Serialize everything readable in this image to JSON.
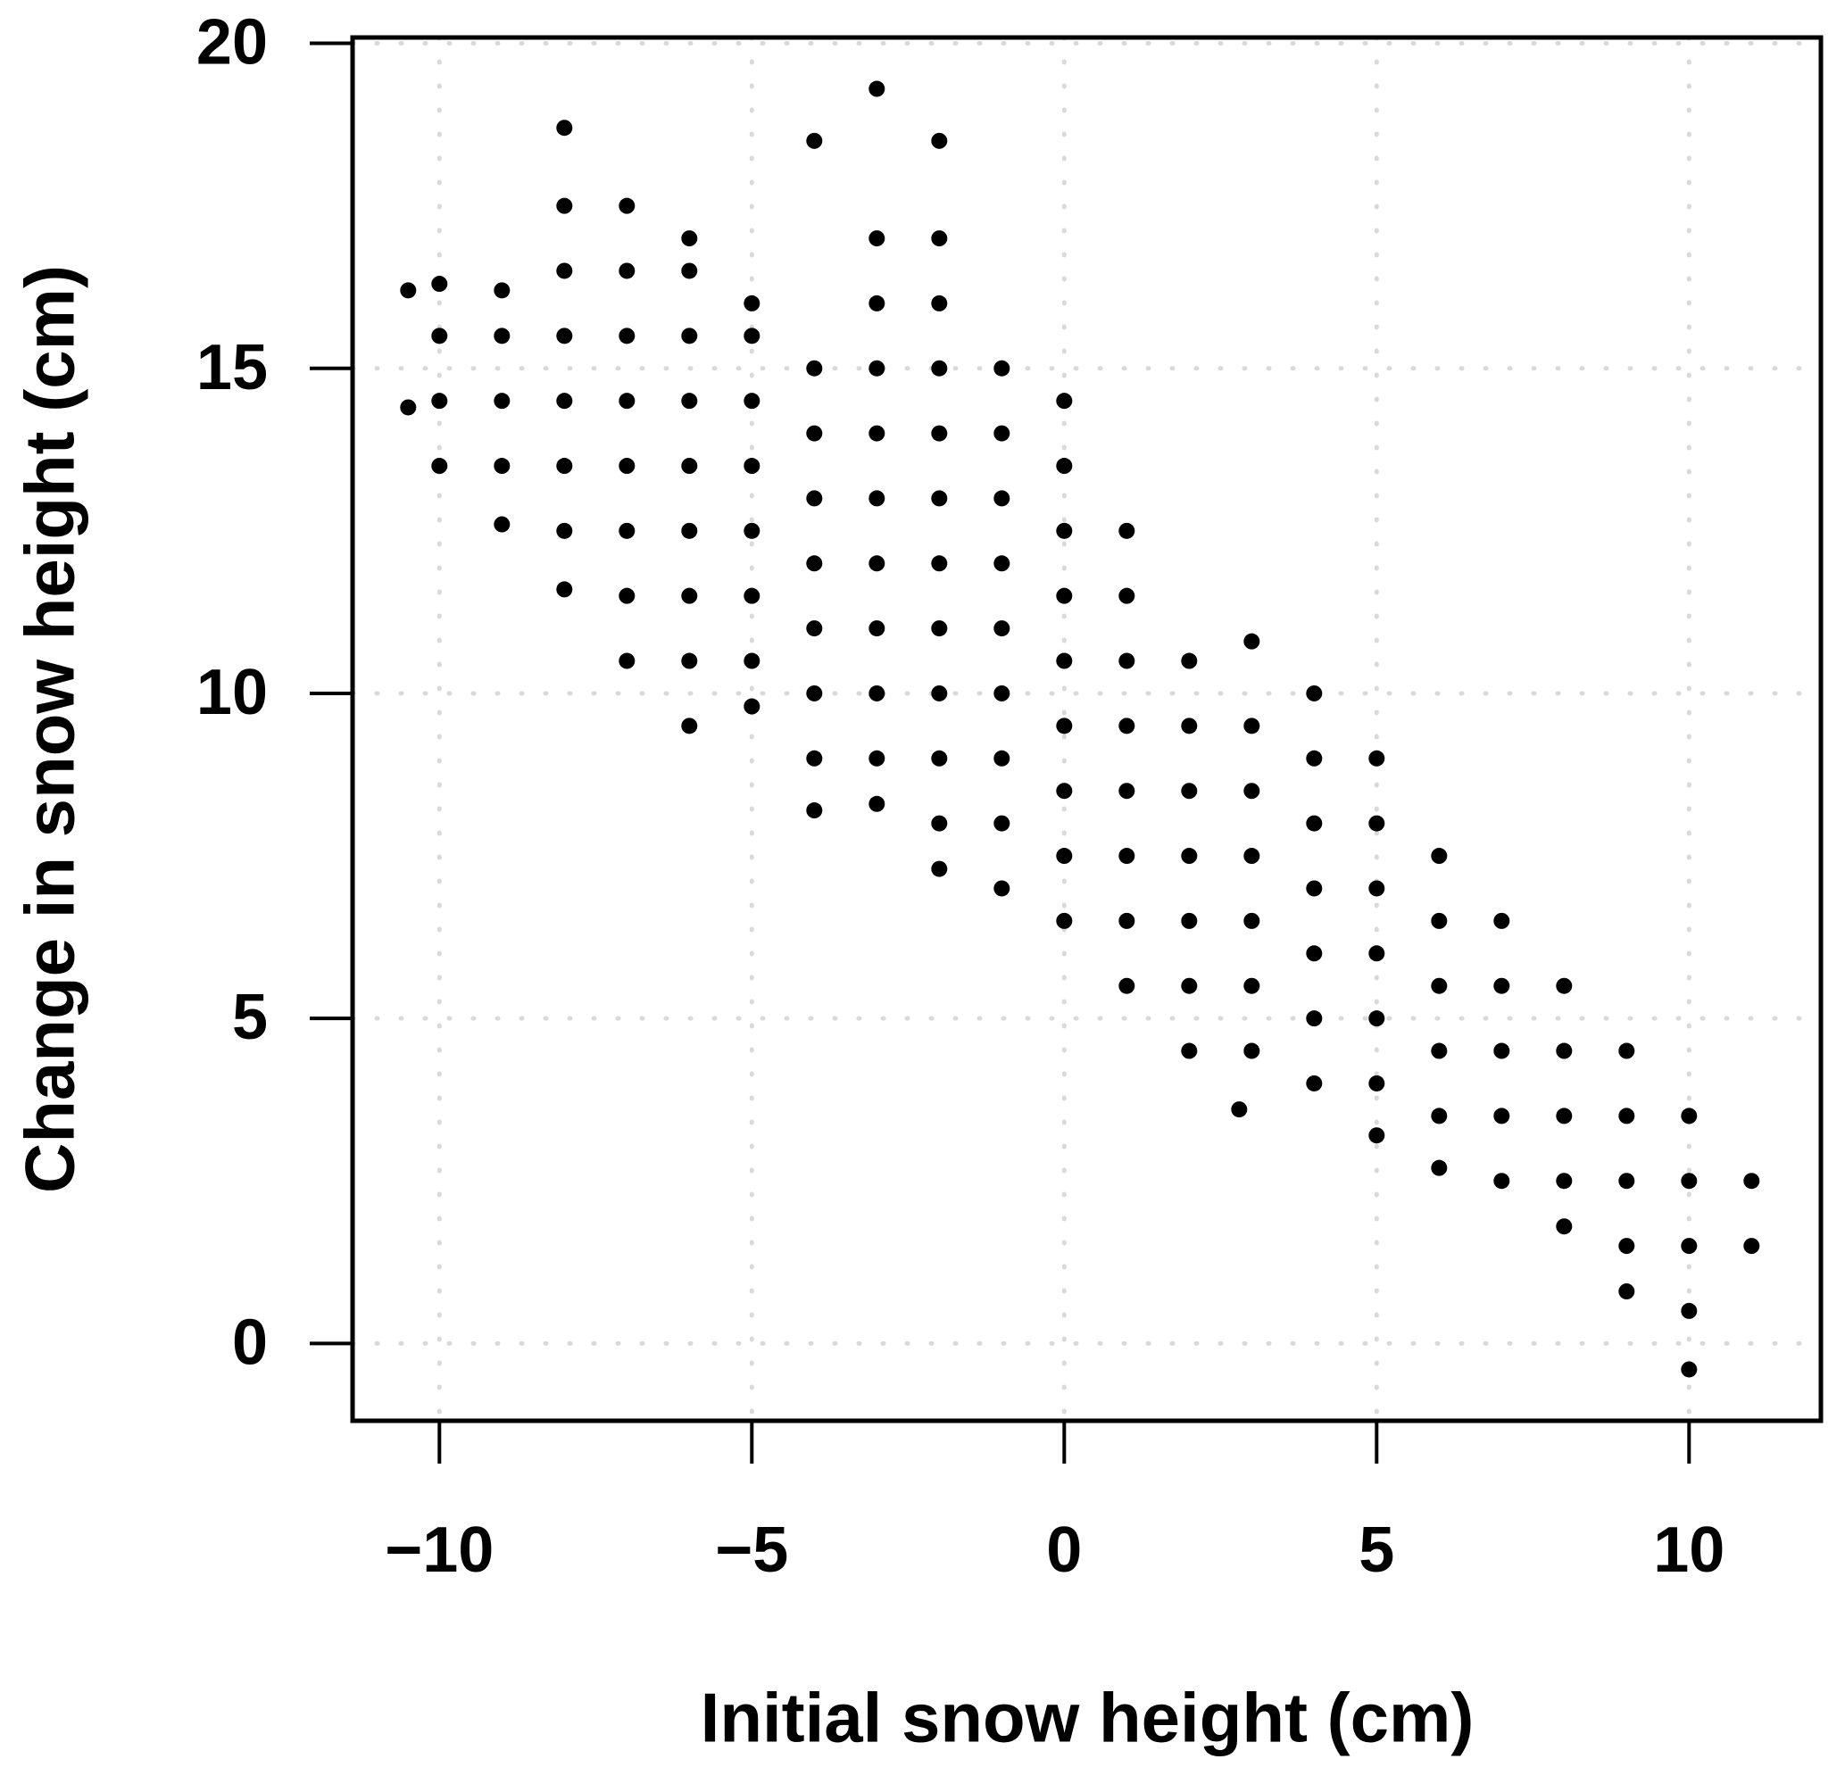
{
  "chart_data": {
    "type": "scatter",
    "x_label": "Initial snow height (cm)",
    "y_label": "Change in snow height (cm)",
    "xlim": [
      -11.39,
      12.11
    ],
    "ylim": [
      -1.19,
      20.09
    ],
    "xticks": [
      {
        "value": -10,
        "label": "−10"
      },
      {
        "value": -5,
        "label": "−5"
      },
      0,
      5,
      10
    ],
    "yticks": [
      0,
      5,
      10,
      15,
      20
    ],
    "grid": true,
    "color": "#000000",
    "x": [
      -10.5,
      -10.5,
      -10,
      -10,
      -10,
      -10,
      -9,
      -9,
      -9,
      -9,
      -9,
      -8,
      -8,
      -8,
      -8,
      -8,
      -8,
      -8,
      -8,
      -7,
      -7,
      -7,
      -7,
      -7,
      -7,
      -7,
      -7,
      -6,
      -6,
      -6,
      -6,
      -6,
      -6,
      -6,
      -6,
      -6,
      -5,
      -5,
      -5,
      -5,
      -5,
      -5,
      -5,
      -5,
      -4,
      -4,
      -4,
      -4,
      -4,
      -4,
      -4,
      -4,
      -4,
      -3,
      -3,
      -3,
      -3,
      -3,
      -3,
      -3,
      -3,
      -3,
      -3,
      -3,
      -2,
      -2,
      -2,
      -2,
      -2,
      -2,
      -2,
      -2,
      -2,
      -2,
      -2,
      -2,
      -1,
      -1,
      -1,
      -1,
      -1,
      -1,
      -1,
      -1,
      -1,
      0,
      0,
      0,
      0,
      0,
      0,
      0,
      0,
      0,
      1,
      1,
      1,
      1,
      1,
      1,
      1,
      1,
      2,
      2,
      2,
      2,
      2,
      2,
      2,
      2.8,
      3,
      3,
      3,
      3,
      3,
      3,
      3,
      4,
      4,
      4,
      4,
      4,
      4,
      4,
      5,
      5,
      5,
      5,
      5,
      5,
      5,
      6,
      6,
      6,
      6,
      6,
      6,
      7,
      7,
      7,
      7,
      7,
      8,
      8,
      8,
      8,
      8,
      9,
      9,
      9,
      9,
      9,
      10,
      10,
      10,
      10,
      10,
      11,
      11
    ],
    "values": [
      14.4,
      16.2,
      13.5,
      14.5,
      15.5,
      16.3,
      12.6,
      13.5,
      14.5,
      15.5,
      16.2,
      11.6,
      12.5,
      13.5,
      14.5,
      15.5,
      16.5,
      17.5,
      18.7,
      10.5,
      11.5,
      12.5,
      13.5,
      14.5,
      15.5,
      16.5,
      17.5,
      9.5,
      10.5,
      11.5,
      12.5,
      13.5,
      14.5,
      15.5,
      16.5,
      17,
      9.8,
      10.5,
      11.5,
      12.5,
      13.5,
      14.5,
      15.5,
      16,
      8.2,
      9,
      10,
      11,
      12,
      13,
      14,
      15,
      18.5,
      8.3,
      9,
      10,
      11,
      12,
      13,
      14,
      15,
      16,
      17,
      19.3,
      7.3,
      8,
      9,
      10,
      11,
      12,
      13,
      14,
      15,
      16,
      17,
      18.5,
      7,
      8,
      9,
      10,
      11,
      12,
      13,
      14,
      15,
      6.5,
      7.5,
      8.5,
      9.5,
      10.5,
      11.5,
      12.5,
      13.5,
      14.5,
      5.5,
      6.5,
      7.5,
      8.5,
      9.5,
      10.5,
      11.5,
      12.5,
      4.5,
      5.5,
      6.5,
      7.5,
      8.5,
      9.5,
      10.5,
      3.6,
      4.5,
      5.5,
      6.5,
      7.5,
      8.5,
      9.5,
      10.8,
      4,
      5,
      6,
      7,
      8,
      9,
      10,
      3.2,
      4,
      5,
      6,
      7,
      8,
      9,
      2.7,
      3.5,
      4.5,
      5.5,
      6.5,
      7.5,
      2.5,
      3.5,
      4.5,
      5.5,
      6.5,
      1.8,
      2.5,
      3.5,
      4.5,
      5.5,
      0.8,
      1.5,
      2.5,
      3.5,
      4.5,
      -0.4,
      0.5,
      1.5,
      2.5,
      3.5,
      1.5,
      2.5
    ]
  }
}
